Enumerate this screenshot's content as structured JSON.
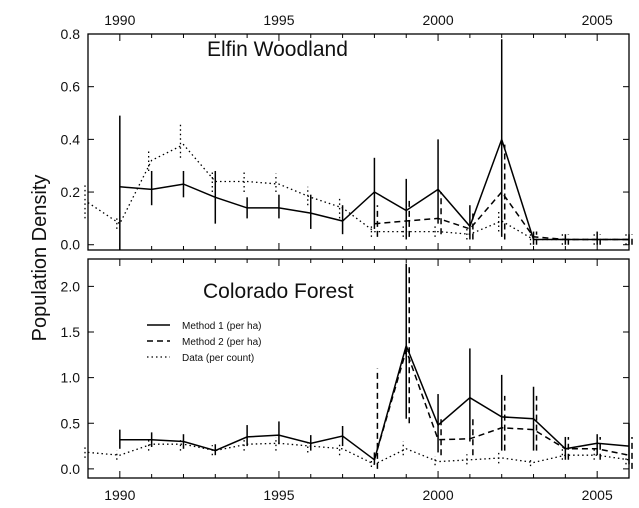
{
  "ylabel": "Population Density",
  "x_ticks": [
    "1990",
    "1995",
    "2000",
    "2005"
  ],
  "legend": [
    {
      "label": "Method 1 (per ha)",
      "style": "solid"
    },
    {
      "label": "Method 2 (per ha)",
      "style": "dashed"
    },
    {
      "label": "Data (per count)",
      "style": "dotted"
    }
  ],
  "chart_data": [
    {
      "type": "line",
      "title": "Elfin Woodland",
      "xlabel": "",
      "ylabel": "Population Density",
      "xlim": [
        1989,
        2006
      ],
      "ylim": [
        -0.02,
        0.8
      ],
      "x_ticks": [
        1990,
        1995,
        2000,
        2005
      ],
      "x_tick_position": "top",
      "y_ticks": [
        0.0,
        0.2,
        0.4,
        0.6,
        0.8
      ],
      "y_tick_labels": [
        "0.0",
        "0.2",
        "0.4",
        "0.6",
        "0.8"
      ],
      "grid": false,
      "series": [
        {
          "name": "Method 1 (per ha)",
          "style": "solid",
          "color": "#000000",
          "x": [
            1990,
            1991,
            1992,
            1993,
            1994,
            1995,
            1996,
            1997,
            1998,
            1999,
            2000,
            2001,
            2002,
            2003,
            2004,
            2005,
            2006
          ],
          "values": [
            0.22,
            0.21,
            0.23,
            0.18,
            0.14,
            0.14,
            0.12,
            0.09,
            0.2,
            0.13,
            0.21,
            0.07,
            0.4,
            0.02,
            0.02,
            0.02,
            0.02
          ],
          "err_low": [
            -0.02,
            0.15,
            0.18,
            0.08,
            0.1,
            0.1,
            0.06,
            0.04,
            0.06,
            0.02,
            0.08,
            0.02,
            0.03,
            0.0,
            0.0,
            0.0,
            0.0
          ],
          "err_high": [
            0.49,
            0.28,
            0.28,
            0.28,
            0.18,
            0.19,
            0.19,
            0.15,
            0.33,
            0.25,
            0.4,
            0.15,
            0.78,
            0.05,
            0.04,
            0.05,
            0.04
          ]
        },
        {
          "name": "Method 2 (per ha)",
          "style": "dashed",
          "color": "#000000",
          "x": [
            1998,
            1999,
            2000,
            2001,
            2002,
            2003,
            2004,
            2005,
            2006
          ],
          "values": [
            0.08,
            0.09,
            0.1,
            0.06,
            0.2,
            0.03,
            0.02,
            0.02,
            0.02
          ],
          "err_low": [
            0.03,
            0.03,
            0.04,
            0.02,
            0.02,
            0.0,
            0.0,
            0.0,
            0.0
          ],
          "err_high": [
            0.15,
            0.18,
            0.2,
            0.12,
            0.38,
            0.05,
            0.04,
            0.04,
            0.04
          ]
        },
        {
          "name": "Data (per count)",
          "style": "dotted",
          "color": "#000000",
          "x": [
            1989,
            1990,
            1991,
            1992,
            1993,
            1994,
            1995,
            1996,
            1997,
            1998,
            1999,
            2000,
            2001,
            2002,
            2003,
            2004,
            2005,
            2006
          ],
          "values": [
            0.16,
            0.08,
            0.32,
            0.38,
            0.24,
            0.24,
            0.23,
            0.18,
            0.14,
            0.05,
            0.05,
            0.05,
            0.04,
            0.09,
            0.02,
            0.02,
            0.02,
            0.02
          ],
          "err_low": [
            0.1,
            0.06,
            0.28,
            0.33,
            0.2,
            0.2,
            0.2,
            0.15,
            0.1,
            0.03,
            0.03,
            0.03,
            0.02,
            0.05,
            0.0,
            0.0,
            0.0,
            0.0
          ],
          "err_high": [
            0.23,
            0.1,
            0.36,
            0.46,
            0.28,
            0.28,
            0.27,
            0.22,
            0.18,
            0.08,
            0.08,
            0.08,
            0.06,
            0.13,
            0.04,
            0.04,
            0.04,
            0.04
          ]
        }
      ]
    },
    {
      "type": "line",
      "title": "Colorado Forest",
      "xlabel": "",
      "ylabel": "Population Density",
      "xlim": [
        1989,
        2006
      ],
      "ylim": [
        -0.1,
        2.3
      ],
      "x_ticks": [
        1990,
        1995,
        2000,
        2005
      ],
      "x_tick_position": "bottom",
      "y_ticks": [
        0.0,
        0.5,
        1.0,
        1.5,
        2.0
      ],
      "y_tick_labels": [
        "0.0",
        "0.5",
        "1.0",
        "1.5",
        "2.0"
      ],
      "grid": false,
      "legend_position": "upper-left",
      "series": [
        {
          "name": "Method 1 (per ha)",
          "style": "solid",
          "color": "#000000",
          "x": [
            1990,
            1991,
            1992,
            1993,
            1994,
            1995,
            1996,
            1997,
            1998,
            1999,
            2000,
            2001,
            2002,
            2003,
            2004,
            2005,
            2006
          ],
          "values": [
            0.32,
            0.32,
            0.3,
            0.2,
            0.35,
            0.37,
            0.28,
            0.36,
            0.1,
            1.35,
            0.48,
            0.78,
            0.57,
            0.55,
            0.22,
            0.28,
            0.25
          ],
          "err_low": [
            0.22,
            0.24,
            0.22,
            0.15,
            0.25,
            0.27,
            0.2,
            0.25,
            0.05,
            0.55,
            0.18,
            0.3,
            0.2,
            0.2,
            0.1,
            0.15,
            0.05
          ],
          "err_high": [
            0.43,
            0.4,
            0.38,
            0.27,
            0.48,
            0.52,
            0.37,
            0.47,
            0.18,
            2.25,
            0.82,
            1.32,
            1.03,
            0.9,
            0.35,
            0.38,
            0.5
          ]
        },
        {
          "name": "Method 2 (per ha)",
          "style": "dashed",
          "color": "#000000",
          "x": [
            1998,
            1999,
            2000,
            2001,
            2002,
            2003,
            2004,
            2005,
            2006
          ],
          "values": [
            0.1,
            1.3,
            0.32,
            0.33,
            0.45,
            0.43,
            0.22,
            0.22,
            0.15
          ],
          "err_low": [
            0.0,
            0.5,
            0.15,
            0.15,
            0.2,
            0.2,
            0.1,
            0.1,
            0.0
          ],
          "err_high": [
            1.1,
            2.25,
            0.55,
            0.55,
            0.8,
            0.8,
            0.35,
            0.35,
            0.35
          ]
        },
        {
          "name": "Data (per count)",
          "style": "dotted",
          "color": "#000000",
          "x": [
            1989,
            1990,
            1991,
            1992,
            1993,
            1994,
            1995,
            1996,
            1997,
            1998,
            1999,
            2000,
            2001,
            2002,
            2003,
            2004,
            2005,
            2006
          ],
          "values": [
            0.18,
            0.15,
            0.27,
            0.27,
            0.2,
            0.27,
            0.28,
            0.25,
            0.22,
            0.05,
            0.22,
            0.08,
            0.1,
            0.12,
            0.07,
            0.15,
            0.15,
            0.1
          ],
          "err_low": [
            0.12,
            0.1,
            0.2,
            0.2,
            0.15,
            0.2,
            0.2,
            0.18,
            0.15,
            0.02,
            0.15,
            0.04,
            0.05,
            0.06,
            0.03,
            0.1,
            0.1,
            0.05
          ],
          "err_high": [
            0.25,
            0.2,
            0.34,
            0.34,
            0.26,
            0.34,
            0.35,
            0.32,
            0.28,
            0.1,
            0.3,
            0.14,
            0.16,
            0.18,
            0.12,
            0.22,
            0.22,
            0.16
          ]
        }
      ]
    }
  ]
}
